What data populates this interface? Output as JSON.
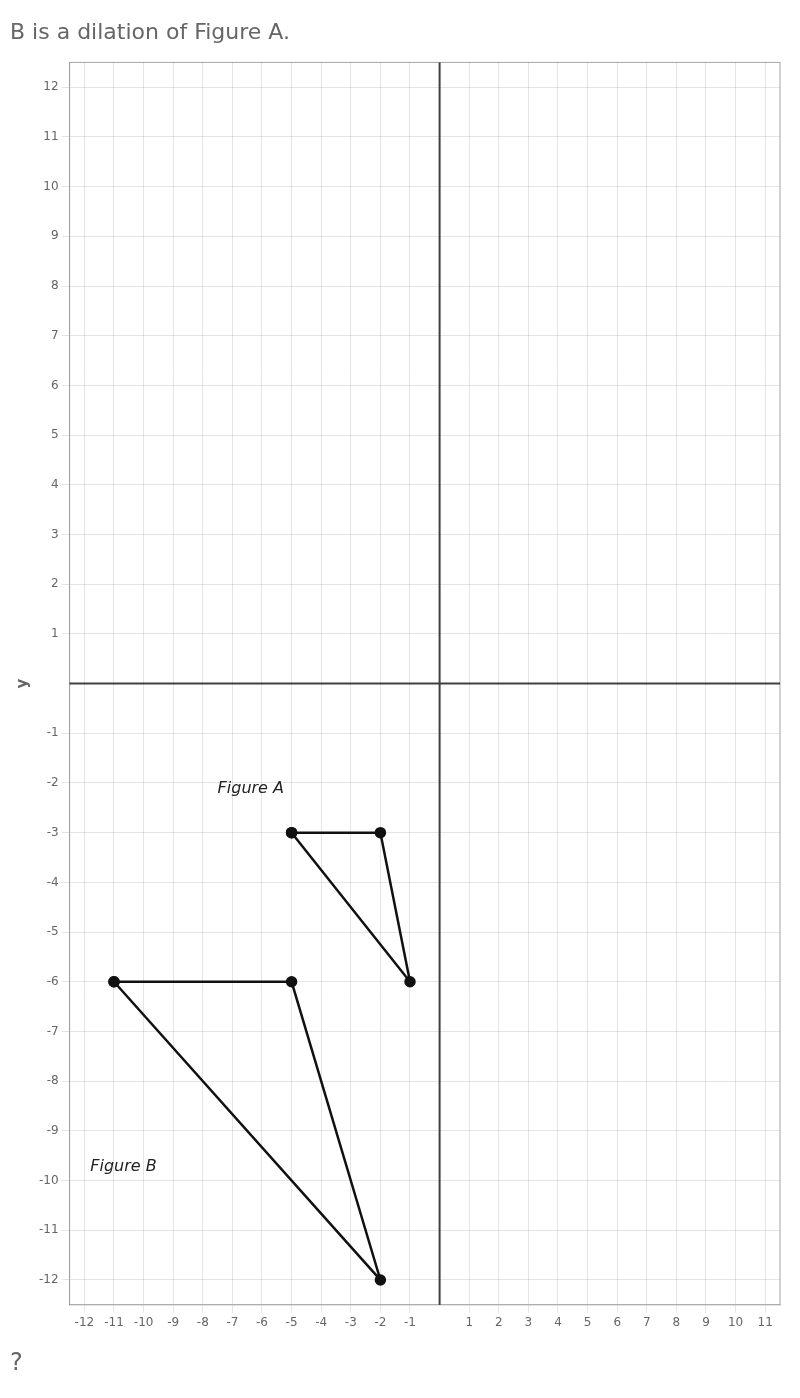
{
  "chart_data": {
    "type": "line",
    "title": "B is a dilation of Figure A.",
    "ylabel": "y",
    "xlim": [
      -12.5,
      11.5
    ],
    "ylim": [
      -12.5,
      12.5
    ],
    "xticks": [
      -12,
      -11,
      -10,
      -9,
      -8,
      -7,
      -6,
      -5,
      -4,
      -3,
      -2,
      -1,
      1,
      2,
      3,
      4,
      5,
      6,
      7,
      8,
      9,
      10,
      11
    ],
    "yticks": [
      -12,
      -11,
      -10,
      -9,
      -8,
      -7,
      -6,
      -5,
      -4,
      -3,
      -2,
      -1,
      1,
      2,
      3,
      4,
      5,
      6,
      7,
      8,
      9,
      10,
      11,
      12
    ],
    "grid": true,
    "series": [
      {
        "name": "Figure A",
        "color": "#111111",
        "marker": "o",
        "x": [
          -5,
          -2,
          -1,
          -5
        ],
        "values": [
          -3,
          -3,
          -6,
          -3
        ]
      },
      {
        "name": "Figure B",
        "color": "#111111",
        "marker": "o",
        "x": [
          -11,
          -5,
          -2,
          -11
        ],
        "values": [
          -6,
          -6,
          -12,
          -6
        ]
      }
    ],
    "annotations": [
      {
        "text": "Figure A",
        "x": -7.5,
        "y": -2.2
      },
      {
        "text": "Figure B",
        "x": -11.8,
        "y": -9.8
      },
      {
        "text": "?"
      }
    ]
  }
}
